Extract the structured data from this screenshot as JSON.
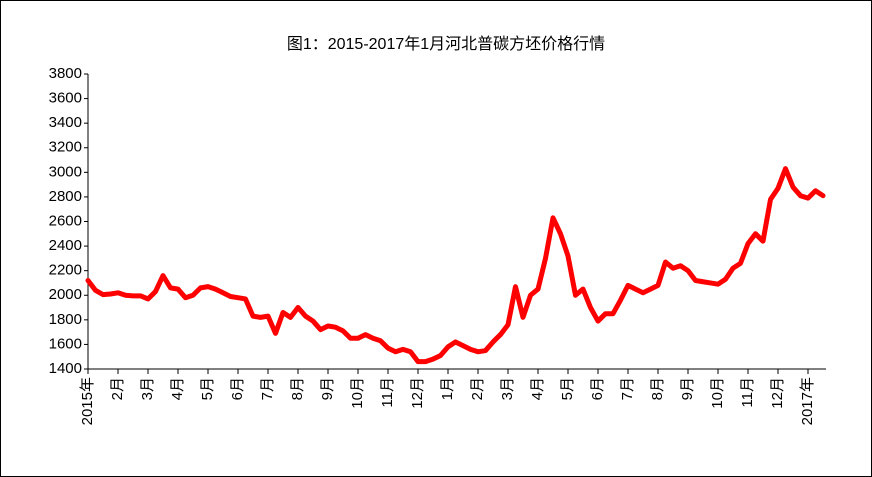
{
  "chart_data": {
    "type": "line",
    "title": "图1：2015-2017年1月河北普碳方坯价格行情",
    "categories": [
      "2015年",
      null,
      null,
      null,
      "2月",
      null,
      null,
      null,
      "3月",
      null,
      null,
      null,
      "4月",
      null,
      null,
      null,
      "5月",
      null,
      null,
      null,
      "6月",
      null,
      null,
      null,
      "7月",
      null,
      null,
      null,
      "8月",
      null,
      null,
      null,
      "9月",
      null,
      null,
      null,
      "10月",
      null,
      null,
      null,
      "11月",
      null,
      null,
      null,
      "12月",
      null,
      null,
      null,
      "1月",
      null,
      null,
      null,
      "2月",
      null,
      null,
      null,
      "3月",
      null,
      null,
      null,
      "4月",
      null,
      null,
      null,
      "5月",
      null,
      null,
      null,
      "6月",
      null,
      null,
      null,
      "7月",
      null,
      null,
      null,
      "8月",
      null,
      null,
      null,
      "9月",
      null,
      null,
      null,
      "10月",
      null,
      null,
      null,
      "11月",
      null,
      null,
      null,
      "12月",
      null,
      null,
      null,
      "2017年",
      null,
      null
    ],
    "values": [
      2120,
      2040,
      2005,
      2010,
      2020,
      2000,
      1995,
      1995,
      1970,
      2030,
      2160,
      2060,
      2050,
      1980,
      2000,
      2060,
      2070,
      2050,
      2020,
      1990,
      1980,
      1970,
      1830,
      1820,
      1830,
      1690,
      1860,
      1820,
      1900,
      1830,
      1790,
      1720,
      1750,
      1740,
      1710,
      1650,
      1650,
      1680,
      1650,
      1630,
      1570,
      1540,
      1560,
      1540,
      1460,
      1460,
      1480,
      1510,
      1580,
      1620,
      1590,
      1560,
      1540,
      1550,
      1620,
      1680,
      1760,
      2070,
      1820,
      2000,
      2050,
      2300,
      2630,
      2500,
      2320,
      2000,
      2050,
      1900,
      1790,
      1850,
      1850,
      1960,
      2080,
      2050,
      2020,
      2050,
      2080,
      2270,
      2220,
      2240,
      2200,
      2120,
      2110,
      2100,
      2090,
      2130,
      2220,
      2260,
      2420,
      2500,
      2440,
      2780,
      2870,
      3030,
      2880,
      2810,
      2790,
      2850,
      2810
    ],
    "color": "#ff0000",
    "ylim": [
      1400,
      3800
    ],
    "yticks": [
      1400,
      1600,
      1800,
      2000,
      2200,
      2400,
      2600,
      2800,
      3000,
      3200,
      3400,
      3600,
      3800
    ],
    "grid": false
  }
}
